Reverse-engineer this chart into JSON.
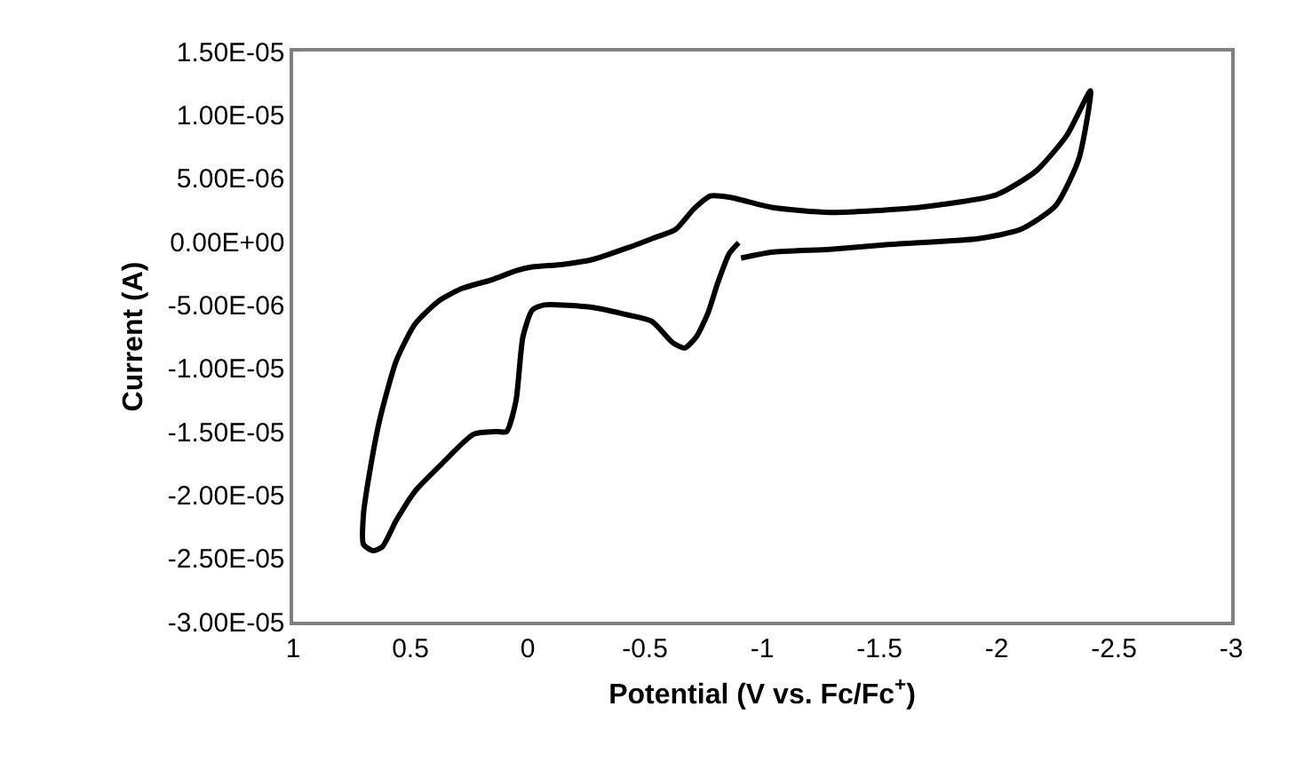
{
  "chart_data": {
    "type": "line",
    "xlabel": "Potential (V vs. Fc/Fc$^{+}$)",
    "ylabel": "Current (A)",
    "xlim": [
      1,
      -3
    ],
    "xticks": [
      1,
      0.5,
      0,
      -0.5,
      -1,
      -1.5,
      -2,
      -2.5,
      -3
    ],
    "ylim": [
      -3e-05,
      1.5e-05
    ],
    "yticks": [
      {
        "value": 1.5e-05,
        "label": "1.50E-05"
      },
      {
        "value": 1e-05,
        "label": "1.00E-05"
      },
      {
        "value": 5e-06,
        "label": "5.00E-06"
      },
      {
        "value": 0,
        "label": "0.00E+00"
      },
      {
        "value": -5e-06,
        "label": "-5.00E-06"
      },
      {
        "value": -1e-05,
        "label": "-1.00E-05"
      },
      {
        "value": -1.5e-05,
        "label": "-1.50E-05"
      },
      {
        "value": -2e-05,
        "label": "-2.00E-05"
      },
      {
        "value": -2.5e-05,
        "label": "-2.50E-05"
      },
      {
        "value": -3e-05,
        "label": "-3.00E-05"
      }
    ],
    "marker": "none",
    "line_style": "solid",
    "series": [
      {
        "color": "#000000",
        "x": [
          -0.91,
          -1.04,
          -1.29,
          -1.54,
          -1.92,
          -2.1,
          -2.25,
          -2.35,
          -2.4,
          -2.3,
          -2.17,
          -2.0,
          -1.67,
          -1.29,
          -1.04,
          -0.86,
          -0.78,
          -0.71,
          -0.63,
          -0.53,
          -0.43,
          -0.28,
          -0.15,
          -0.02,
          0.05,
          0.15,
          0.28,
          0.38,
          0.48,
          0.56,
          0.63,
          0.67,
          0.7,
          0.7,
          0.66,
          0.62,
          0.56,
          0.48,
          0.38,
          0.23,
          0.13,
          0.09,
          0.05,
          0.02,
          -0.02,
          -0.07,
          -0.28,
          -0.43,
          -0.53,
          -0.62,
          -0.67,
          -0.72,
          -0.77,
          -0.81,
          -0.86,
          -0.9
        ],
        "values": [
          -1.3e-06,
          -8.4e-07,
          -6.1e-07,
          -2.3e-07,
          2.3e-07,
          9.4e-07,
          2.8e-06,
          6.5e-06,
          1.19e-05,
          8.4e-06,
          5.6e-06,
          3.7e-06,
          2.7e-06,
          2.3e-06,
          2.7e-06,
          3.5e-06,
          3.6e-06,
          2.6e-06,
          9.4e-07,
          2.3e-07,
          -4.7e-07,
          -1.4e-06,
          -1.8e-06,
          -2e-06,
          -2.3e-06,
          -3e-06,
          -3.7e-06,
          -4.7e-06,
          -6.5e-06,
          -9.4e-06,
          -1.4e-05,
          -1.78e-05,
          -2.15e-05,
          -2.39e-05,
          -2.44e-05,
          -2.41e-05,
          -2.2e-05,
          -1.97e-05,
          -1.78e-05,
          -1.52e-05,
          -1.5e-05,
          -1.5e-05,
          -1.26e-05,
          -7.5e-06,
          -5.4e-06,
          -5e-06,
          -5.2e-06,
          -5.8e-06,
          -6.3e-06,
          -8e-06,
          -8.4e-06,
          -7.5e-06,
          -5.6e-06,
          -3.3e-06,
          -9.4e-07,
          -9e-08
        ]
      }
    ]
  }
}
